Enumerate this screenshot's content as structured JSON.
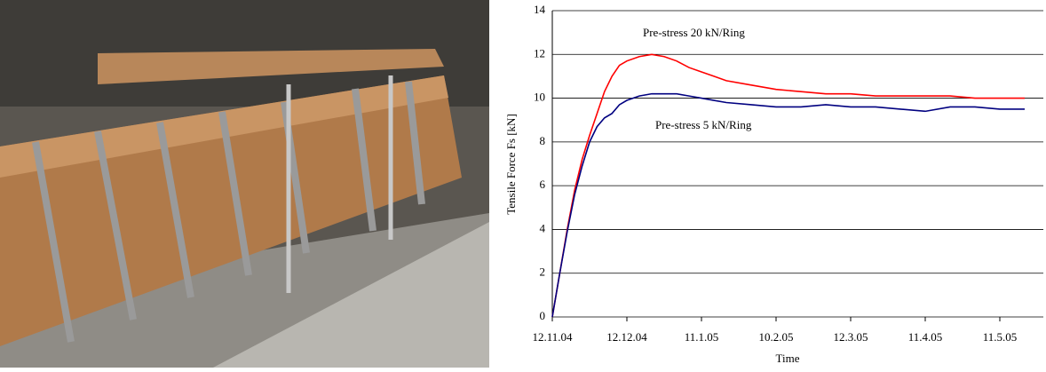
{
  "chart_data": {
    "type": "line",
    "x_label": "Time",
    "y_label": "Tensile Force Fs [kN]",
    "x": [
      0,
      3,
      6,
      9,
      12,
      15,
      18,
      21,
      24,
      27,
      30,
      35,
      40,
      45,
      50,
      55,
      60,
      65,
      70,
      80,
      90,
      100,
      110,
      120,
      130,
      140,
      150,
      160,
      170,
      180,
      190
    ],
    "series": [
      {
        "name": "Pre-stress 20 kN/Ring",
        "color": "#ff0000",
        "values": [
          0,
          2.0,
          4.0,
          5.8,
          7.2,
          8.3,
          9.3,
          10.3,
          11.0,
          11.5,
          11.7,
          11.9,
          12.0,
          11.9,
          11.7,
          11.4,
          11.2,
          11.0,
          10.8,
          10.6,
          10.4,
          10.3,
          10.2,
          10.2,
          10.1,
          10.1,
          10.1,
          10.1,
          10.0,
          10.0,
          10.0
        ]
      },
      {
        "name": "Pre-stress 5 kN/Ring",
        "color": "#000080",
        "values": [
          0,
          2.0,
          3.9,
          5.6,
          6.9,
          8.0,
          8.7,
          9.1,
          9.3,
          9.7,
          9.9,
          10.1,
          10.2,
          10.2,
          10.2,
          10.1,
          10.0,
          9.9,
          9.8,
          9.7,
          9.6,
          9.6,
          9.7,
          9.6,
          9.6,
          9.5,
          9.4,
          9.6,
          9.6,
          9.5,
          9.5
        ]
      }
    ],
    "xlim": [
      0,
      197.5
    ],
    "xticks": [
      {
        "value": 0,
        "label": "12.11.04"
      },
      {
        "value": 30,
        "label": "12.12.04"
      },
      {
        "value": 60,
        "label": "11.1.05"
      },
      {
        "value": 90,
        "label": "10.2.05"
      },
      {
        "value": 120,
        "label": "12.3.05"
      },
      {
        "value": 150,
        "label": "11.4.05"
      },
      {
        "value": 180,
        "label": "11.5.05"
      }
    ],
    "ylim": [
      0,
      14
    ],
    "yticks": [
      0,
      2,
      4,
      6,
      8,
      10,
      12,
      14
    ],
    "grid": true
  }
}
